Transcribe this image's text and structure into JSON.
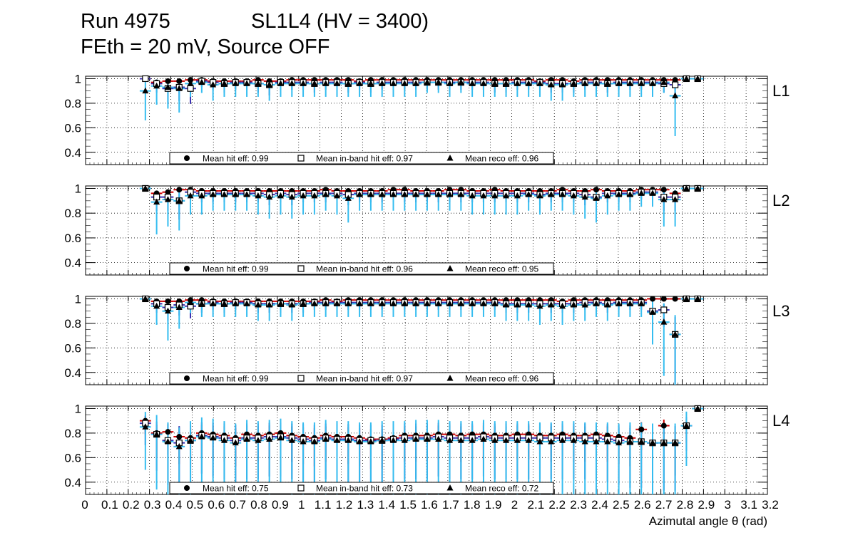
{
  "header": {
    "run": "Run 4975",
    "chamber": "SL1L4 (HV = 3400)",
    "conditions": "FEth = 20 mV, Source OFF"
  },
  "colors": {
    "hit": "#cc0000",
    "inband": "#3a2fb0",
    "reco": "#35bdf0",
    "marker": "#000000",
    "grid": "#000000"
  },
  "chart_data": {
    "type": "scatter",
    "xlabel": "Azimutal angle θ (rad)",
    "xlim": [
      0,
      3.2
    ],
    "ylim": [
      0.3,
      1.02
    ],
    "grid": true,
    "x_ticks": [
      0,
      0.1,
      0.2,
      0.3,
      0.4,
      0.5,
      0.6,
      0.7,
      0.8,
      0.9,
      1,
      1.1,
      1.2,
      1.3,
      1.4,
      1.5,
      1.6,
      1.7,
      1.8,
      1.9,
      2,
      2.1,
      2.2,
      2.3,
      2.4,
      2.5,
      2.6,
      2.7,
      2.8,
      2.9,
      3,
      3.1,
      3.2
    ],
    "x_tick_labels": [
      "0",
      "0.1",
      "0.2",
      "0.3",
      "0.4",
      "0.5",
      "0.6",
      "0.7",
      "0.8",
      "0.9",
      "1",
      "1.1",
      "1.2",
      "1.3",
      "1.4",
      "1.5",
      "1.6",
      "1.7",
      "1.8",
      "1.9",
      "2",
      "2.1",
      "2.2",
      "2.3",
      "2.4",
      "2.5",
      "2.6",
      "2.7",
      "2.8",
      "2.9",
      "3",
      "3.1",
      "3.2"
    ],
    "y_ticks": [
      0.4,
      0.6,
      0.8,
      1
    ],
    "y_tick_labels": [
      "0.4",
      "0.6",
      "0.8",
      "1"
    ],
    "x": [
      0.2806,
      0.3335,
      0.3864,
      0.4393,
      0.4922,
      0.5451,
      0.598,
      0.6509,
      0.7038,
      0.7567,
      0.8096,
      0.8625,
      0.9154,
      0.9683,
      1.0212,
      1.0741,
      1.127,
      1.1799,
      1.2328,
      1.2857,
      1.3386,
      1.3915,
      1.4444,
      1.4973,
      1.5502,
      1.6031,
      1.656,
      1.7089,
      1.7618,
      1.8147,
      1.8676,
      1.9205,
      1.9734,
      2.0263,
      2.0792,
      2.1321,
      2.185,
      2.2379,
      2.2908,
      2.3437,
      2.3966,
      2.4495,
      2.5024,
      2.5553,
      2.6082,
      2.6611,
      2.714,
      2.7669,
      2.8198,
      2.8727
    ],
    "panels": [
      {
        "label": "L1",
        "legend": {
          "hit": "Mean hit  eff: 0.99",
          "inband": "Mean in-band hit eff: 0.97",
          "reco": "Mean reco eff: 0.96"
        },
        "series": [
          {
            "name": "Mean hit eff",
            "values": [
              1.0,
              0.97,
              0.98,
              0.98,
              0.99,
              0.99,
              0.98,
              0.98,
              0.98,
              0.98,
              0.99,
              0.98,
              0.98,
              0.99,
              0.99,
              0.99,
              0.99,
              0.99,
              0.99,
              0.98,
              0.99,
              0.99,
              0.99,
              0.99,
              0.99,
              0.99,
              0.99,
              0.99,
              0.99,
              0.99,
              0.99,
              0.99,
              0.99,
              0.99,
              0.99,
              0.98,
              0.99,
              0.99,
              0.98,
              0.99,
              0.99,
              0.99,
              0.99,
              0.99,
              0.99,
              0.99,
              0.99,
              0.99,
              1.0,
              1.0
            ]
          },
          {
            "name": "Mean in-band hit eff",
            "values": [
              1.0,
              0.96,
              0.92,
              0.93,
              0.92,
              0.98,
              0.97,
              0.96,
              0.97,
              0.97,
              0.96,
              0.95,
              0.97,
              0.97,
              0.97,
              0.96,
              0.97,
              0.97,
              0.96,
              0.97,
              0.96,
              0.97,
              0.97,
              0.97,
              0.97,
              0.97,
              0.97,
              0.97,
              0.97,
              0.97,
              0.97,
              0.96,
              0.96,
              0.97,
              0.97,
              0.97,
              0.96,
              0.96,
              0.96,
              0.97,
              0.97,
              0.96,
              0.97,
              0.97,
              0.97,
              0.97,
              0.96,
              0.95,
              1.0,
              1.0
            ]
          },
          {
            "name": "Mean reco eff",
            "values": [
              0.9,
              0.94,
              0.93,
              0.92,
              0.96,
              0.97,
              0.95,
              0.96,
              0.96,
              0.96,
              0.96,
              0.95,
              0.96,
              0.96,
              0.96,
              0.96,
              0.96,
              0.96,
              0.96,
              0.96,
              0.96,
              0.96,
              0.96,
              0.96,
              0.96,
              0.97,
              0.97,
              0.96,
              0.97,
              0.96,
              0.96,
              0.96,
              0.96,
              0.96,
              0.96,
              0.96,
              0.95,
              0.95,
              0.96,
              0.96,
              0.96,
              0.96,
              0.96,
              0.96,
              0.96,
              0.96,
              0.97,
              0.86,
              1.0,
              1.0
            ]
          }
        ]
      },
      {
        "label": "L2",
        "legend": {
          "hit": "Mean hit  eff: 0.99",
          "inband": "Mean in-band hit eff: 0.96",
          "reco": "Mean reco eff: 0.95"
        },
        "series": [
          {
            "name": "Mean hit eff",
            "values": [
              1.0,
              0.96,
              0.97,
              0.99,
              0.99,
              0.98,
              0.98,
              0.98,
              0.98,
              0.98,
              0.98,
              0.98,
              0.98,
              0.98,
              0.98,
              0.98,
              0.99,
              0.98,
              0.98,
              0.98,
              0.98,
              0.98,
              0.99,
              0.99,
              0.98,
              0.98,
              0.98,
              0.99,
              0.99,
              0.98,
              0.98,
              0.99,
              0.98,
              0.98,
              0.98,
              0.98,
              0.98,
              0.99,
              0.98,
              0.98,
              0.99,
              0.98,
              0.98,
              0.98,
              0.99,
              0.99,
              0.99,
              0.96,
              1.0,
              1.0
            ]
          },
          {
            "name": "Mean in-band hit eff",
            "values": [
              1.0,
              0.93,
              0.93,
              0.9,
              0.97,
              0.96,
              0.96,
              0.96,
              0.96,
              0.96,
              0.96,
              0.95,
              0.96,
              0.95,
              0.96,
              0.96,
              0.96,
              0.96,
              0.95,
              0.96,
              0.96,
              0.96,
              0.96,
              0.96,
              0.96,
              0.96,
              0.96,
              0.96,
              0.96,
              0.96,
              0.96,
              0.96,
              0.96,
              0.96,
              0.96,
              0.95,
              0.96,
              0.96,
              0.96,
              0.95,
              0.93,
              0.96,
              0.96,
              0.96,
              0.97,
              0.97,
              0.93,
              0.93,
              1.0,
              1.0
            ]
          },
          {
            "name": "Mean reco eff",
            "values": [
              1.0,
              0.89,
              0.91,
              0.9,
              0.94,
              0.94,
              0.95,
              0.95,
              0.95,
              0.95,
              0.94,
              0.93,
              0.94,
              0.93,
              0.94,
              0.94,
              0.95,
              0.94,
              0.92,
              0.95,
              0.95,
              0.95,
              0.95,
              0.95,
              0.95,
              0.95,
              0.95,
              0.95,
              0.95,
              0.94,
              0.94,
              0.94,
              0.94,
              0.94,
              0.95,
              0.94,
              0.95,
              0.95,
              0.94,
              0.93,
              0.92,
              0.94,
              0.95,
              0.95,
              0.96,
              0.96,
              0.91,
              0.91,
              1.0,
              1.0
            ]
          }
        ]
      },
      {
        "label": "L3",
        "legend": {
          "hit": "Mean hit  eff: 0.99",
          "inband": "Mean in-band hit eff: 0.97",
          "reco": "Mean reco eff: 0.96"
        },
        "series": [
          {
            "name": "Mean hit eff",
            "values": [
              1.0,
              0.98,
              0.98,
              0.98,
              0.99,
              0.99,
              0.98,
              0.98,
              0.98,
              0.98,
              0.98,
              0.98,
              0.98,
              0.98,
              0.98,
              0.98,
              0.99,
              0.98,
              0.99,
              0.99,
              0.99,
              0.99,
              0.99,
              0.99,
              0.99,
              0.99,
              0.99,
              0.99,
              0.99,
              0.99,
              0.99,
              0.99,
              0.99,
              0.99,
              0.99,
              0.99,
              0.99,
              0.98,
              0.99,
              0.99,
              0.99,
              0.99,
              0.99,
              0.99,
              0.99,
              1.0,
              1.0,
              1.0,
              1.0,
              1.0
            ]
          },
          {
            "name": "Mean in-band hit eff",
            "values": [
              1.0,
              0.96,
              0.93,
              0.95,
              0.94,
              0.96,
              0.97,
              0.96,
              0.97,
              0.97,
              0.96,
              0.96,
              0.96,
              0.96,
              0.96,
              0.97,
              0.97,
              0.97,
              0.97,
              0.97,
              0.97,
              0.97,
              0.97,
              0.97,
              0.97,
              0.97,
              0.97,
              0.97,
              0.97,
              0.97,
              0.97,
              0.97,
              0.96,
              0.96,
              0.96,
              0.96,
              0.96,
              0.96,
              0.96,
              0.97,
              0.97,
              0.96,
              0.97,
              0.97,
              0.97,
              0.9,
              0.91,
              0.71,
              1.0,
              1.0
            ]
          },
          {
            "name": "Mean reco eff",
            "values": [
              1.0,
              0.94,
              0.9,
              0.93,
              0.97,
              0.96,
              0.96,
              0.96,
              0.96,
              0.96,
              0.95,
              0.95,
              0.96,
              0.95,
              0.96,
              0.96,
              0.96,
              0.96,
              0.96,
              0.96,
              0.96,
              0.96,
              0.96,
              0.96,
              0.96,
              0.96,
              0.96,
              0.96,
              0.96,
              0.96,
              0.96,
              0.96,
              0.95,
              0.95,
              0.95,
              0.94,
              0.95,
              0.94,
              0.95,
              0.95,
              0.96,
              0.95,
              0.96,
              0.96,
              0.96,
              0.89,
              0.81,
              0.71,
              1.0,
              1.0
            ]
          }
        ]
      },
      {
        "label": "L4",
        "legend": {
          "hit": "Mean hit  eff: 0.75",
          "inband": "Mean in-band hit eff: 0.73",
          "reco": "Mean reco eff: 0.72"
        },
        "series": [
          {
            "name": "Mean hit eff",
            "values": [
              0.9,
              0.8,
              0.81,
              0.77,
              0.76,
              0.8,
              0.79,
              0.78,
              0.76,
              0.79,
              0.78,
              0.79,
              0.8,
              0.78,
              0.77,
              0.76,
              0.78,
              0.77,
              0.77,
              0.76,
              0.75,
              0.75,
              0.76,
              0.78,
              0.78,
              0.78,
              0.79,
              0.79,
              0.78,
              0.79,
              0.79,
              0.78,
              0.78,
              0.79,
              0.79,
              0.78,
              0.78,
              0.79,
              0.78,
              0.78,
              0.79,
              0.78,
              0.77,
              0.76,
              0.83,
              0.72,
              0.86,
              0.72,
              0.86,
              1.0
            ]
          },
          {
            "name": "Mean in-band hit eff",
            "values": [
              0.88,
              0.79,
              0.74,
              0.72,
              0.74,
              0.78,
              0.77,
              0.76,
              0.74,
              0.76,
              0.76,
              0.77,
              0.77,
              0.76,
              0.75,
              0.74,
              0.76,
              0.75,
              0.75,
              0.74,
              0.74,
              0.74,
              0.75,
              0.76,
              0.76,
              0.76,
              0.77,
              0.76,
              0.76,
              0.76,
              0.77,
              0.76,
              0.76,
              0.76,
              0.76,
              0.76,
              0.76,
              0.76,
              0.76,
              0.76,
              0.76,
              0.75,
              0.74,
              0.73,
              0.73,
              0.72,
              0.72,
              0.72,
              0.86,
              1.0
            ]
          },
          {
            "name": "Mean reco eff",
            "values": [
              0.85,
              0.79,
              0.73,
              0.69,
              0.74,
              0.77,
              0.76,
              0.74,
              0.72,
              0.75,
              0.74,
              0.75,
              0.76,
              0.74,
              0.73,
              0.73,
              0.75,
              0.74,
              0.74,
              0.73,
              0.73,
              0.74,
              0.74,
              0.74,
              0.75,
              0.75,
              0.75,
              0.74,
              0.74,
              0.74,
              0.75,
              0.74,
              0.74,
              0.74,
              0.74,
              0.73,
              0.73,
              0.74,
              0.74,
              0.73,
              0.73,
              0.73,
              0.72,
              0.73,
              0.73,
              0.72,
              0.72,
              0.72,
              0.86,
              1.0
            ]
          }
        ]
      }
    ]
  }
}
